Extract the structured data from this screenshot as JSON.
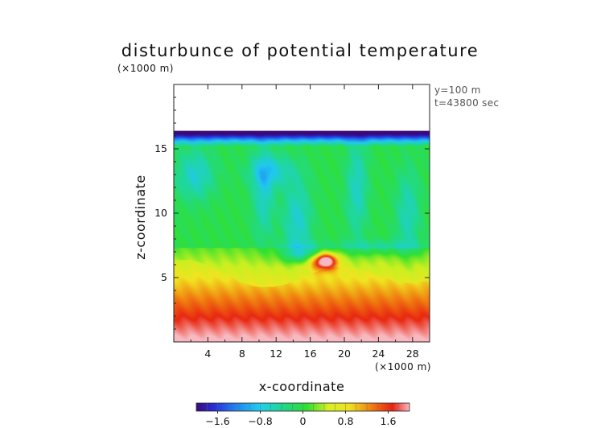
{
  "chart_data": {
    "type": "heatmap",
    "title": "disturbunce of potential temperature",
    "xlabel": "x-coordinate",
    "ylabel": "z-coordinate",
    "x_unit": "(×1000 m)",
    "y_unit": "(×1000 m)",
    "annotations": [
      "y=100 m",
      "t=43800 sec"
    ],
    "xlim": [
      0,
      30
    ],
    "ylim": [
      0,
      20
    ],
    "x_ticks": [
      "4",
      "8",
      "12",
      "16",
      "20",
      "24",
      "28"
    ],
    "y_ticks": [
      "5",
      "10",
      "15"
    ],
    "data_top": 16.4,
    "colorbar": {
      "range": [
        -2.0,
        2.0
      ],
      "ticks": [
        "−1.6",
        "−0.8",
        "0",
        "0.8",
        "1.6"
      ],
      "orientation": "horizontal",
      "placement": "bottom"
    },
    "features": [
      {
        "name": "warm anomaly",
        "x": 17.8,
        "z": 6.3,
        "value": 1.4
      },
      {
        "name": "cold layer at top",
        "z": 16.2,
        "value": -1.8
      },
      {
        "name": "warm near surface",
        "z": 0.5,
        "value": 1.8
      }
    ]
  }
}
